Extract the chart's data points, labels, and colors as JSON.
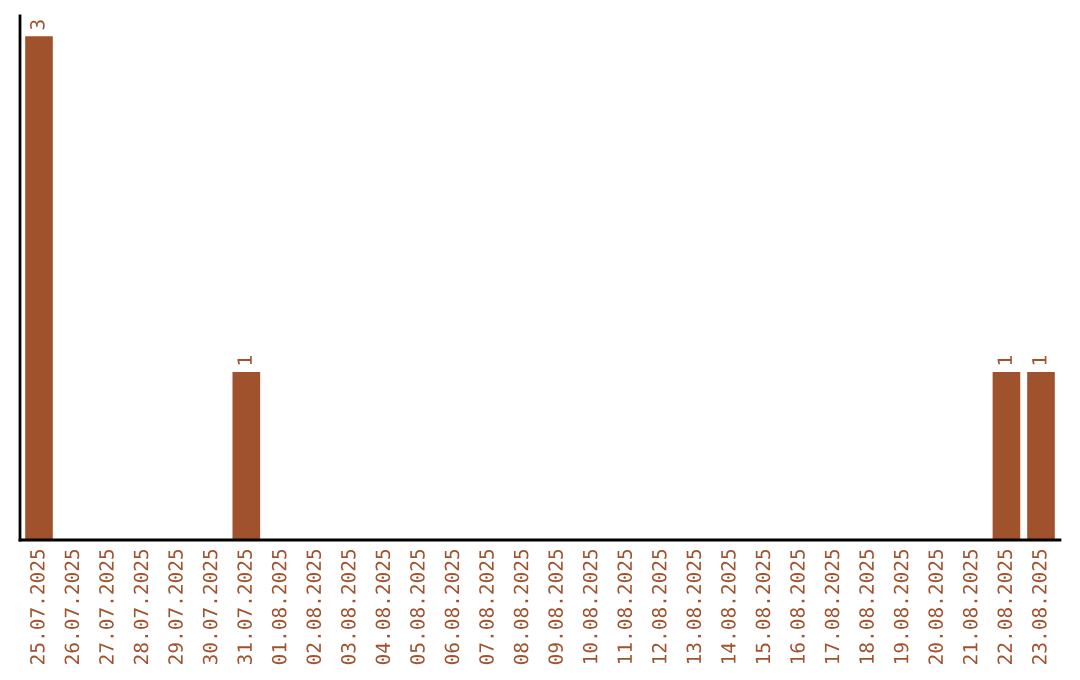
{
  "chart_data": {
    "type": "bar",
    "categories": [
      "25.07.2025",
      "26.07.2025",
      "27.07.2025",
      "28.07.2025",
      "29.07.2025",
      "30.07.2025",
      "31.07.2025",
      "01.08.2025",
      "02.08.2025",
      "03.08.2025",
      "04.08.2025",
      "05.08.2025",
      "06.08.2025",
      "07.08.2025",
      "08.08.2025",
      "09.08.2025",
      "10.08.2025",
      "11.08.2025",
      "12.08.2025",
      "13.08.2025",
      "14.08.2025",
      "15.08.2025",
      "16.08.2025",
      "17.08.2025",
      "18.08.2025",
      "19.08.2025",
      "20.08.2025",
      "21.08.2025",
      "22.08.2025",
      "23.08.2025"
    ],
    "values": [
      3,
      0,
      0,
      0,
      0,
      0,
      1,
      0,
      0,
      0,
      0,
      0,
      0,
      0,
      0,
      0,
      0,
      0,
      0,
      0,
      0,
      0,
      0,
      0,
      0,
      0,
      0,
      0,
      1,
      1
    ],
    "value_labels": [
      "3",
      null,
      null,
      null,
      null,
      null,
      "1",
      null,
      null,
      null,
      null,
      null,
      null,
      null,
      null,
      null,
      null,
      null,
      null,
      null,
      null,
      null,
      null,
      null,
      null,
      null,
      null,
      null,
      "1",
      "1"
    ],
    "color": "#a0522d",
    "tick_labels": "x",
    "grid": false,
    "legend": false
  }
}
